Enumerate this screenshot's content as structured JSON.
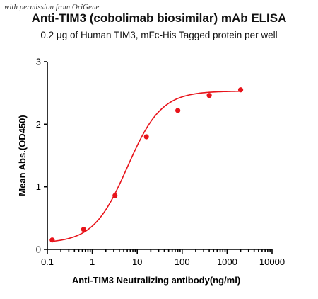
{
  "watermark": "with permission from OriGene",
  "chart_data": {
    "type": "scatter",
    "title": "Anti-TIM3 (cobolimab biosimilar) mAb ELISA",
    "subtitle": "0.2 μg of Human TIM3, mFc-His Tagged protein per well",
    "xlabel": "Anti-TIM3 Neutralizing antibody(ng/ml)",
    "ylabel": "Mean Abs.(OD450)",
    "x_scale": "log",
    "xlim": [
      0.1,
      10000
    ],
    "ylim": [
      0,
      3
    ],
    "x_ticks": [
      0.1,
      1,
      10,
      100,
      1000,
      10000
    ],
    "x_tick_labels": [
      "0.1",
      "1",
      "10",
      "100",
      "1000",
      "10000"
    ],
    "y_ticks": [
      0,
      1,
      2,
      3
    ],
    "y_tick_labels": [
      "0",
      "1",
      "2",
      "3"
    ],
    "grid": false,
    "color": "#e8141b",
    "series": [
      {
        "x": [
          0.128,
          0.64,
          3.2,
          16,
          80,
          400,
          2000
        ],
        "y": [
          0.15,
          0.32,
          0.86,
          1.8,
          2.22,
          2.46,
          2.55
        ]
      }
    ],
    "fit": {
      "bottom": 0.1,
      "top": 2.53,
      "logEC50": 0.78,
      "hill": 1.15
    }
  }
}
